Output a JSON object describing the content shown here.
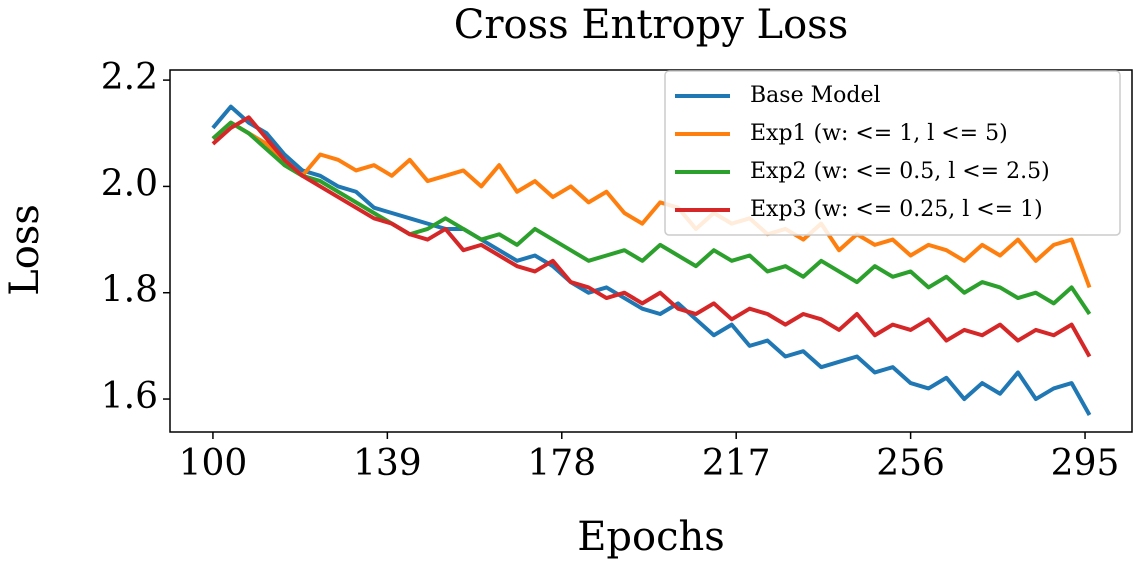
{
  "chart_data": {
    "type": "line",
    "title": "Cross Entropy Loss",
    "xlabel": "Epochs",
    "ylabel": "Loss",
    "x": [
      100,
      104,
      108,
      112,
      116,
      120,
      124,
      128,
      132,
      136,
      140,
      144,
      148,
      152,
      156,
      160,
      164,
      168,
      172,
      176,
      180,
      184,
      188,
      192,
      196,
      200,
      204,
      208,
      212,
      216,
      220,
      224,
      228,
      232,
      236,
      240,
      244,
      248,
      252,
      256,
      260,
      264,
      268,
      272,
      276,
      280,
      284,
      288,
      292,
      296
    ],
    "series": [
      {
        "name": "Base Model",
        "color": "#1f77b4",
        "values": [
          2.11,
          2.15,
          2.12,
          2.1,
          2.06,
          2.03,
          2.02,
          2.0,
          1.99,
          1.96,
          1.95,
          1.94,
          1.93,
          1.92,
          1.92,
          1.9,
          1.88,
          1.86,
          1.87,
          1.85,
          1.82,
          1.8,
          1.81,
          1.79,
          1.77,
          1.76,
          1.78,
          1.75,
          1.72,
          1.74,
          1.7,
          1.71,
          1.68,
          1.69,
          1.66,
          1.67,
          1.68,
          1.65,
          1.66,
          1.63,
          1.62,
          1.64,
          1.6,
          1.63,
          1.61,
          1.65,
          1.6,
          1.62,
          1.63,
          1.57
        ]
      },
      {
        "name": "Exp1 (w: <= 1, l <= 5)",
        "color": "#ff7f0e",
        "values": [
          2.09,
          2.12,
          2.1,
          2.08,
          2.04,
          2.02,
          2.06,
          2.05,
          2.03,
          2.04,
          2.02,
          2.05,
          2.01,
          2.02,
          2.03,
          2.0,
          2.04,
          1.99,
          2.01,
          1.98,
          2.0,
          1.97,
          1.99,
          1.95,
          1.93,
          1.97,
          1.96,
          1.92,
          1.95,
          1.93,
          1.94,
          1.91,
          1.92,
          1.9,
          1.93,
          1.88,
          1.91,
          1.89,
          1.9,
          1.87,
          1.89,
          1.88,
          1.86,
          1.89,
          1.87,
          1.9,
          1.86,
          1.89,
          1.9,
          1.81
        ]
      },
      {
        "name": "Exp2 (w: <= 0.5, l <= 2.5)",
        "color": "#2ca02c",
        "values": [
          2.09,
          2.12,
          2.1,
          2.07,
          2.04,
          2.02,
          2.01,
          1.99,
          1.97,
          1.95,
          1.93,
          1.91,
          1.92,
          1.94,
          1.92,
          1.9,
          1.91,
          1.89,
          1.92,
          1.9,
          1.88,
          1.86,
          1.87,
          1.88,
          1.86,
          1.89,
          1.87,
          1.85,
          1.88,
          1.86,
          1.87,
          1.84,
          1.85,
          1.83,
          1.86,
          1.84,
          1.82,
          1.85,
          1.83,
          1.84,
          1.81,
          1.83,
          1.8,
          1.82,
          1.81,
          1.79,
          1.8,
          1.78,
          1.81,
          1.76
        ]
      },
      {
        "name": "Exp3 (w: <= 0.25, l <= 1)",
        "color": "#d62728",
        "values": [
          2.08,
          2.11,
          2.13,
          2.09,
          2.05,
          2.02,
          2.0,
          1.98,
          1.96,
          1.94,
          1.93,
          1.91,
          1.9,
          1.92,
          1.88,
          1.89,
          1.87,
          1.85,
          1.84,
          1.86,
          1.82,
          1.81,
          1.79,
          1.8,
          1.78,
          1.8,
          1.77,
          1.76,
          1.78,
          1.75,
          1.77,
          1.76,
          1.74,
          1.76,
          1.75,
          1.73,
          1.76,
          1.72,
          1.74,
          1.73,
          1.75,
          1.71,
          1.73,
          1.72,
          1.74,
          1.71,
          1.73,
          1.72,
          1.74,
          1.68
        ]
      }
    ],
    "xlim": [
      90.4,
      305.5
    ],
    "ylim": [
      1.538,
      2.219
    ],
    "xticks": [
      100,
      139,
      178,
      217,
      256,
      295
    ],
    "yticks": [
      1.6,
      1.8,
      {
        "value": 2,
        "label": "2.0"
      },
      2.2
    ],
    "legend": "upper right"
  }
}
